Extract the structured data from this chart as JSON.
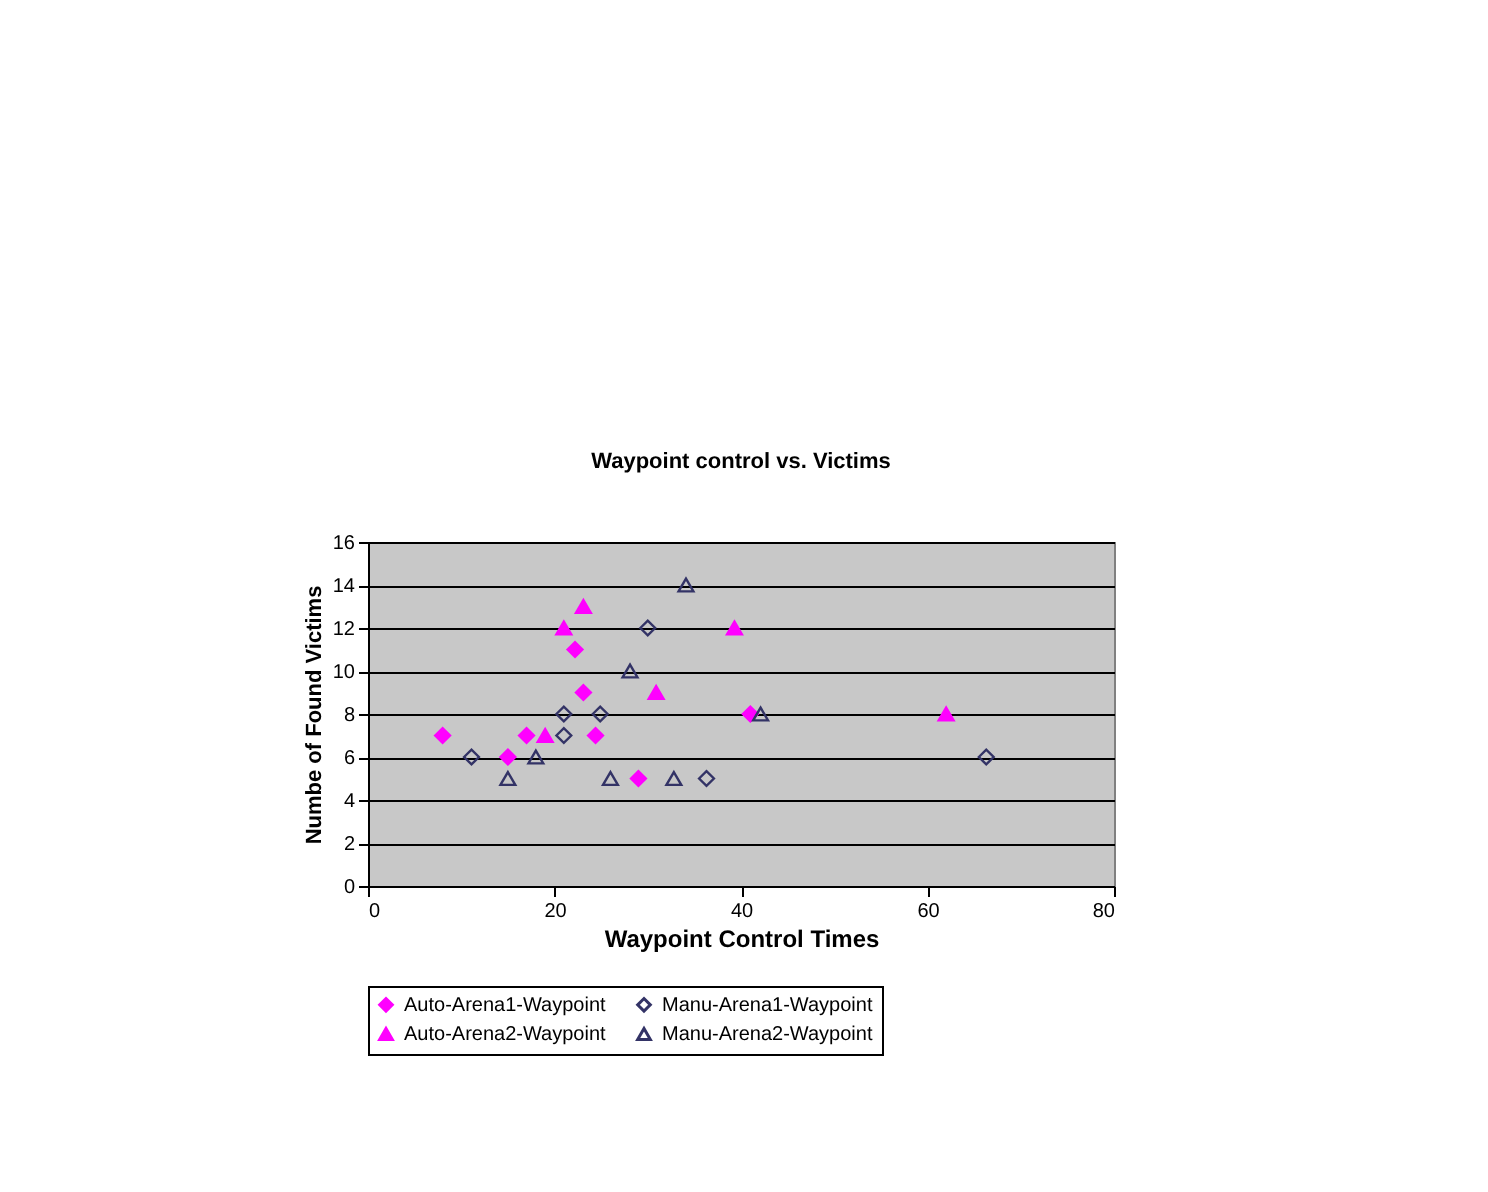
{
  "chart_data": {
    "type": "scatter",
    "title": "Waypoint control vs. Victims",
    "xlabel": "Waypoint Control Times",
    "ylabel": "Numbe of Found Victims",
    "xlim": [
      0,
      80
    ],
    "xticks": [
      0,
      20,
      40,
      60,
      80
    ],
    "ylim": [
      0,
      16
    ],
    "yticks": [
      0,
      2,
      4,
      6,
      8,
      10,
      12,
      14,
      16
    ],
    "grid": "y",
    "legend": "bottom",
    "series": [
      {
        "name": "Auto-Arena1-Waypoint",
        "color": "#ff00ff",
        "marker": "diamond",
        "x": [
          8,
          15,
          17,
          22.2,
          23.1,
          24.4,
          29,
          41
        ],
        "values": [
          7,
          6,
          7,
          11,
          9,
          7,
          5,
          8
        ]
      },
      {
        "name": "Manu-Arena1-Waypoint",
        "color": "#333366",
        "marker": "diamond",
        "x": [
          11.1,
          21,
          21,
          24.9,
          30,
          36.3,
          66.3
        ],
        "values": [
          6,
          8,
          7,
          8,
          12,
          5,
          6
        ]
      },
      {
        "name": "Auto-Arena2-Waypoint",
        "color": "#ff00ff",
        "marker": "triangle",
        "x": [
          19,
          21,
          23.1,
          30.9,
          39.3,
          62
        ],
        "values": [
          7,
          12,
          13,
          9,
          12,
          8
        ]
      },
      {
        "name": "Manu-Arena2-Waypoint",
        "color": "#333366",
        "marker": "triangle",
        "x": [
          15,
          18,
          26,
          28.1,
          32.8,
          34.1,
          42.1
        ],
        "values": [
          5,
          6,
          5,
          10,
          5,
          14,
          8
        ]
      }
    ]
  }
}
